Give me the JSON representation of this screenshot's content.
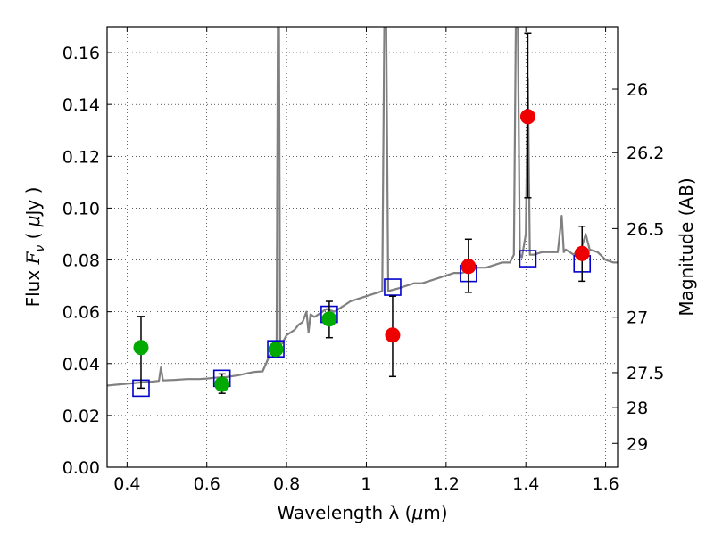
{
  "chart_data": {
    "type": "scatter",
    "title": "",
    "xlabel_text": "Wavelength  λ (",
    "xlabel_mu": "μ",
    "xlabel_unit": "m)",
    "ylabel_text": "Flux  ",
    "ylabel_F": "F",
    "ylabel_sub": "ν",
    "ylabel_open": "  ( ",
    "ylabel_mu": "μ",
    "ylabel_unit": "Jy )",
    "y2label": "Magnitude (AB)",
    "xlim": [
      0.35,
      1.63
    ],
    "ylim": [
      0.0,
      0.17
    ],
    "xticks": [
      0.4,
      0.6,
      0.8,
      1.0,
      1.2,
      1.4,
      1.6
    ],
    "xtick_labels": [
      "0.4",
      "0.6",
      "0.8",
      "1",
      "1.2",
      "1.4",
      "1.6"
    ],
    "yticks": [
      0.0,
      0.02,
      0.04,
      0.06,
      0.08,
      0.1,
      0.12,
      0.14,
      0.16
    ],
    "ytick_labels": [
      "0.00",
      "0.02",
      "0.04",
      "0.06",
      "0.08",
      "0.10",
      "0.12",
      "0.14",
      "0.16"
    ],
    "y2ticks": [
      {
        "label": "26",
        "flux": 0.1459
      },
      {
        "label": "26.2",
        "flux": 0.1214
      },
      {
        "label": "26.5",
        "flux": 0.0921
      },
      {
        "label": "27",
        "flux": 0.0579
      },
      {
        "label": "27.5",
        "flux": 0.0365
      },
      {
        "label": "28",
        "flux": 0.0231
      },
      {
        "label": "29",
        "flux": 0.0092
      }
    ],
    "grid": true,
    "colors": {
      "model": "#808080",
      "green": "#00aa00",
      "red": "#ee0000",
      "box": "#0000cc",
      "errorbar": "#000000"
    },
    "series": [
      {
        "kind": "line",
        "points": [
          [
            0.35,
            0.0315
          ],
          [
            0.37,
            0.0318
          ],
          [
            0.4,
            0.0322
          ],
          [
            0.42,
            0.0325
          ],
          [
            0.44,
            0.0328
          ],
          [
            0.46,
            0.033
          ],
          [
            0.48,
            0.0333
          ],
          [
            0.485,
            0.0385
          ],
          [
            0.49,
            0.0335
          ],
          [
            0.52,
            0.0337
          ],
          [
            0.55,
            0.034
          ],
          [
            0.58,
            0.034
          ],
          [
            0.6,
            0.0342
          ],
          [
            0.62,
            0.0345
          ],
          [
            0.65,
            0.0348
          ],
          [
            0.68,
            0.0355
          ],
          [
            0.7,
            0.0362
          ],
          [
            0.72,
            0.0368
          ],
          [
            0.74,
            0.037
          ],
          [
            0.76,
            0.044
          ],
          [
            0.775,
            0.046
          ],
          [
            0.778,
            0.17
          ],
          [
            0.781,
            0.17
          ],
          [
            0.784,
            0.047
          ],
          [
            0.79,
            0.048
          ],
          [
            0.8,
            0.051
          ],
          [
            0.81,
            0.052
          ],
          [
            0.82,
            0.053
          ],
          [
            0.83,
            0.055
          ],
          [
            0.84,
            0.056
          ],
          [
            0.85,
            0.06
          ],
          [
            0.855,
            0.052
          ],
          [
            0.86,
            0.059
          ],
          [
            0.87,
            0.058
          ],
          [
            0.88,
            0.059
          ],
          [
            0.89,
            0.06
          ],
          [
            0.9,
            0.061
          ],
          [
            0.92,
            0.06
          ],
          [
            0.94,
            0.062
          ],
          [
            0.96,
            0.064
          ],
          [
            0.98,
            0.065
          ],
          [
            1.0,
            0.066
          ],
          [
            1.02,
            0.067
          ],
          [
            1.04,
            0.068
          ],
          [
            1.045,
            0.17
          ],
          [
            1.05,
            0.17
          ],
          [
            1.055,
            0.068
          ],
          [
            1.08,
            0.069
          ],
          [
            1.1,
            0.07
          ],
          [
            1.12,
            0.071
          ],
          [
            1.14,
            0.071
          ],
          [
            1.16,
            0.072
          ],
          [
            1.18,
            0.073
          ],
          [
            1.2,
            0.074
          ],
          [
            1.22,
            0.075
          ],
          [
            1.24,
            0.075
          ],
          [
            1.26,
            0.076
          ],
          [
            1.28,
            0.077
          ],
          [
            1.3,
            0.077
          ],
          [
            1.32,
            0.078
          ],
          [
            1.34,
            0.079
          ],
          [
            1.36,
            0.079
          ],
          [
            1.37,
            0.082
          ],
          [
            1.375,
            0.17
          ],
          [
            1.38,
            0.17
          ],
          [
            1.385,
            0.082
          ],
          [
            1.39,
            0.081
          ],
          [
            1.4,
            0.09
          ],
          [
            1.405,
            0.15
          ],
          [
            1.41,
            0.082
          ],
          [
            1.42,
            0.082
          ],
          [
            1.44,
            0.083
          ],
          [
            1.46,
            0.083
          ],
          [
            1.48,
            0.083
          ],
          [
            1.49,
            0.097
          ],
          [
            1.495,
            0.083
          ],
          [
            1.5,
            0.084
          ],
          [
            1.52,
            0.082
          ],
          [
            1.54,
            0.085
          ],
          [
            1.55,
            0.09
          ],
          [
            1.56,
            0.084
          ],
          [
            1.58,
            0.083
          ],
          [
            1.6,
            0.08
          ],
          [
            1.62,
            0.079
          ],
          [
            1.63,
            0.079
          ]
        ]
      },
      {
        "kind": "box",
        "points": [
          [
            0.435,
            0.0305
          ],
          [
            0.638,
            0.0343
          ],
          [
            0.773,
            0.0457
          ],
          [
            0.907,
            0.059
          ],
          [
            1.066,
            0.0695
          ],
          [
            1.256,
            0.0748
          ],
          [
            1.405,
            0.0805
          ],
          [
            1.541,
            0.0785
          ]
        ]
      },
      {
        "kind": "green",
        "points": [
          {
            "x": 0.435,
            "y": 0.0462,
            "lo": 0.0305,
            "hi": 0.0582
          },
          {
            "x": 0.638,
            "y": 0.032,
            "lo": 0.0285,
            "hi": 0.036
          },
          {
            "x": 0.773,
            "y": 0.0455,
            "lo": 0.043,
            "hi": 0.048
          },
          {
            "x": 0.907,
            "y": 0.0572,
            "lo": 0.05,
            "hi": 0.064
          }
        ]
      },
      {
        "kind": "red",
        "points": [
          {
            "x": 1.066,
            "y": 0.051,
            "lo": 0.035,
            "hi": 0.066
          },
          {
            "x": 1.256,
            "y": 0.0775,
            "lo": 0.0675,
            "hi": 0.088
          },
          {
            "x": 1.405,
            "y": 0.1353,
            "lo": 0.104,
            "hi": 0.1675
          },
          {
            "x": 1.541,
            "y": 0.0825,
            "lo": 0.0718,
            "hi": 0.093
          }
        ]
      }
    ]
  }
}
